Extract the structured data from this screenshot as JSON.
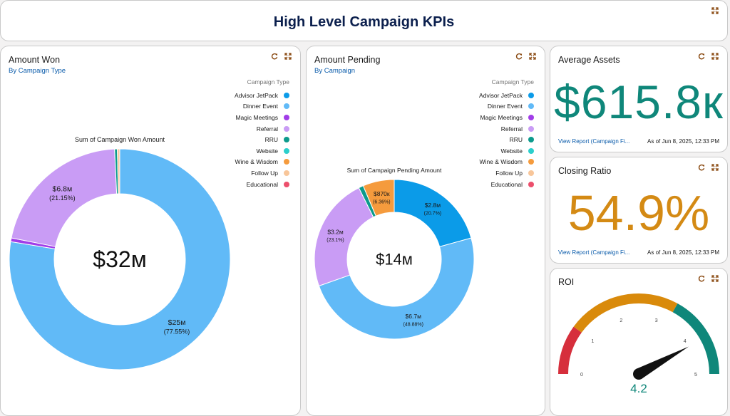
{
  "header": {
    "title": "High Level Campaign KPIs"
  },
  "legend": {
    "title": "Campaign Type",
    "items": [
      {
        "label": "Advisor JetPack",
        "color": "#0b9be8"
      },
      {
        "label": "Dinner Event",
        "color": "#61baf7"
      },
      {
        "label": "Magic Meetings",
        "color": "#a13de8"
      },
      {
        "label": "Referral",
        "color": "#c99cf5"
      },
      {
        "label": "RRU",
        "color": "#0c9a8c"
      },
      {
        "label": "Website",
        "color": "#2ccfcc"
      },
      {
        "label": "Wine & Wisdom",
        "color": "#f59b3d"
      },
      {
        "label": "Follow Up",
        "color": "#f8c69a"
      },
      {
        "label": "Educational",
        "color": "#ec4f6c"
      }
    ]
  },
  "won": {
    "title": "Amount Won",
    "subtitle": "By Campaign Type",
    "chart_data": {
      "type": "donut",
      "title": "Sum of Campaign Won Amount",
      "center_label": "$32м",
      "slices": [
        {
          "name": "Dinner Event",
          "percent": 77.55,
          "color": "#61baf7",
          "label": "$25м",
          "pct_label": "(77.55%)"
        },
        {
          "name": "Magic Meetings",
          "percent": 0.55,
          "color": "#a13de8",
          "label": "",
          "pct_label": ""
        },
        {
          "name": "Referral",
          "percent": 21.15,
          "color": "#c99cf5",
          "label": "$6.8м",
          "pct_label": "(21.15%)"
        },
        {
          "name": "RRU",
          "percent": 0.4,
          "color": "#0c9a8c",
          "label": "",
          "pct_label": ""
        },
        {
          "name": "Follow Up",
          "percent": 0.35,
          "color": "#f8c69a",
          "label": "",
          "pct_label": ""
        }
      ]
    }
  },
  "pending": {
    "title": "Amount Pending",
    "subtitle": "By Campaign",
    "chart_data": {
      "type": "donut",
      "title": "Sum of Campaign Pending Amount",
      "center_label": "$14м",
      "slices": [
        {
          "name": "Advisor JetPack",
          "percent": 20.7,
          "color": "#0b9be8",
          "label": "$2.8м",
          "pct_label": "(20.7%)"
        },
        {
          "name": "Dinner Event",
          "percent": 48.88,
          "color": "#61baf7",
          "label": "$6.7м",
          "pct_label": "(48.88%)"
        },
        {
          "name": "Referral",
          "percent": 23.1,
          "color": "#c99cf5",
          "label": "$3.2м",
          "pct_label": "(23.1%)"
        },
        {
          "name": "RRU",
          "percent": 0.96,
          "color": "#0c9a8c",
          "label": "",
          "pct_label": ""
        },
        {
          "name": "Wine & Wisdom",
          "percent": 6.36,
          "color": "#f59b3d",
          "label": "$870к",
          "pct_label": "(6.36%)"
        }
      ]
    }
  },
  "assets": {
    "title": "Average Assets",
    "value": "$615.8к",
    "color": "#0f877a",
    "link": "View Report (Campaign Fi...",
    "asof": "As of Jun 8, 2025, 12:33 PM"
  },
  "closing": {
    "title": "Closing Ratio",
    "value": "54.9%",
    "color": "#d48a14",
    "link": "View Report (Campaign Fi...",
    "asof": "As of Jun 8, 2025, 12:33 PM"
  },
  "roi": {
    "title": "ROI",
    "chart_data": {
      "type": "gauge",
      "min": 0,
      "max": 5,
      "value": 4.2,
      "value_label": "4.2",
      "ticks": [
        "0",
        "1",
        "2",
        "3",
        "4",
        "5"
      ],
      "bands": [
        {
          "from": 0,
          "to": 1,
          "color": "#d62f3c"
        },
        {
          "from": 1,
          "to": 3.3,
          "color": "#d98a0b"
        },
        {
          "from": 3.3,
          "to": 5,
          "color": "#0f877a"
        }
      ]
    }
  },
  "icons": {
    "refresh": "refresh-icon",
    "expand": "expand-icon"
  }
}
